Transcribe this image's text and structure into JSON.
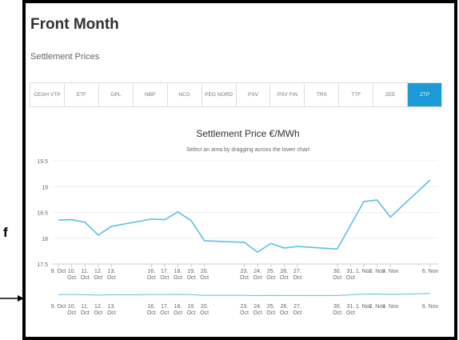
{
  "header": {
    "title": "Front Month",
    "subtitle": "Settlement Prices"
  },
  "tabs": {
    "items": [
      "CEGH VTP",
      "ETF",
      "GPL",
      "NBP",
      "NCG",
      "PEG NORD",
      "PSV",
      "PSV FIN",
      "TRS",
      "TTF",
      "ZEE",
      "ZTP"
    ],
    "active": "ZTP"
  },
  "margin_text": "f",
  "chart_data": {
    "type": "line",
    "title": "Settlement Price €/MWh",
    "subtitle": "Select an area by dragging across the lower chart",
    "x": [
      "9. Oct",
      "10. Oct",
      "11. Oct",
      "12. Oct",
      "13. Oct",
      "16. Oct",
      "17. Oct",
      "18. Oct",
      "19. Oct",
      "20. Oct",
      "23. Oct",
      "24. Oct",
      "25. Oct",
      "26. Oct",
      "27. Oct",
      "30. Oct",
      "31. Oct",
      "1. Nov",
      "2. Nov",
      "3. Nov",
      "6. Nov"
    ],
    "series": [
      {
        "name": "ZTP",
        "color": "#5bc0e8",
        "values": [
          18.35,
          18.36,
          18.31,
          18.06,
          18.23,
          18.37,
          18.36,
          18.51,
          18.34,
          17.95,
          17.92,
          17.73,
          17.9,
          17.81,
          17.84,
          17.79,
          18.25,
          18.71,
          18.74,
          18.41,
          19.13
        ]
      }
    ],
    "ylim": [
      17.5,
      19.5
    ],
    "yticks": [
      17.5,
      18,
      18.5,
      19,
      19.5
    ],
    "grid": true
  }
}
